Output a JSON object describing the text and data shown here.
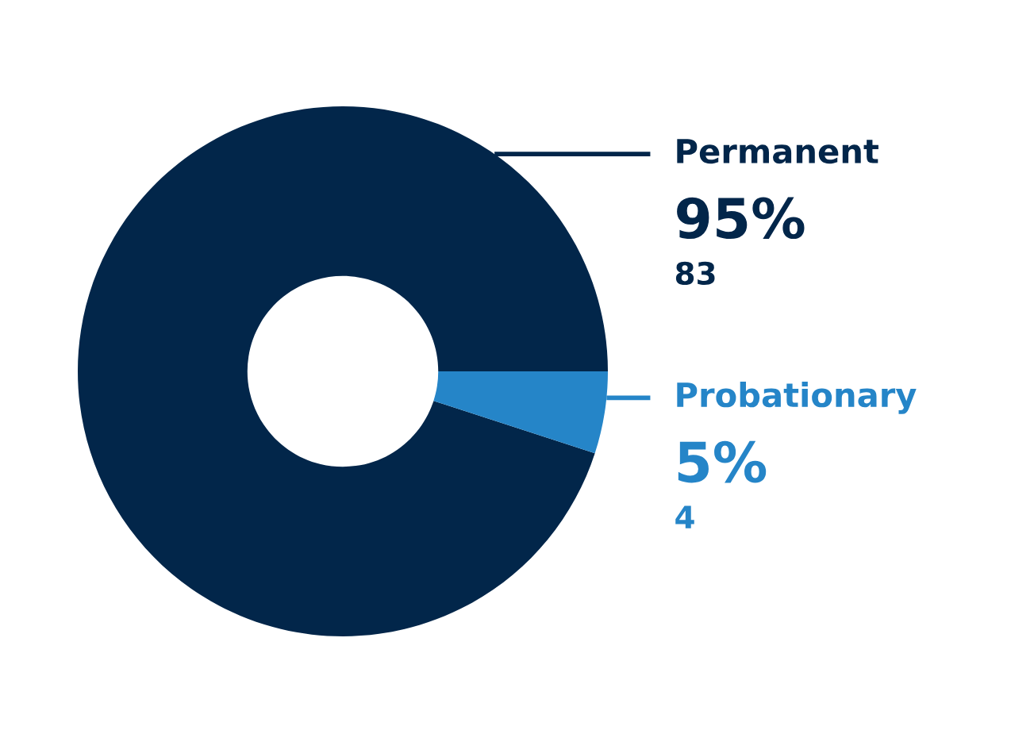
{
  "chart_data": {
    "type": "donut",
    "categories": [
      "Permanent",
      "Probationary"
    ],
    "values": [
      95,
      5
    ],
    "value_labels": [
      "95%",
      "5%"
    ],
    "annotations": [
      "83",
      "4"
    ],
    "colors": [
      "#02264a",
      "#2585c8"
    ],
    "legend": false
  }
}
